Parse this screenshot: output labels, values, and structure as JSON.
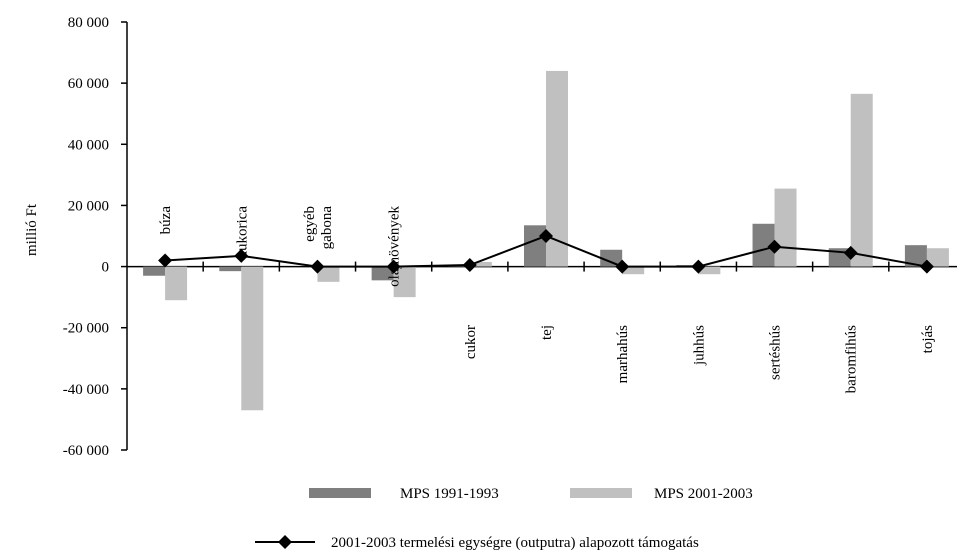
{
  "chart_data": {
    "type": "bar",
    "title": "",
    "ylabel": "millió Ft",
    "xlabel": "",
    "ylim": [
      -60000,
      80000
    ],
    "yticks": [
      80000,
      60000,
      40000,
      20000,
      0,
      -20000,
      -40000,
      -60000
    ],
    "ytick_labels": [
      "80 000",
      "60 000",
      "40 000",
      "20 000",
      "0",
      "-20 000",
      "-40 000",
      "-60 000"
    ],
    "categories": [
      {
        "lines": [
          "búza"
        ],
        "side": "above"
      },
      {
        "lines": [
          "kukorica"
        ],
        "side": "above"
      },
      {
        "lines": [
          "egyéb",
          "gabona"
        ],
        "side": "above"
      },
      {
        "lines": [
          "olajnövények"
        ],
        "side": "above"
      },
      {
        "lines": [
          "cukor"
        ],
        "side": "below"
      },
      {
        "lines": [
          "tej"
        ],
        "side": "below"
      },
      {
        "lines": [
          "marhahús"
        ],
        "side": "below"
      },
      {
        "lines": [
          "juhhús"
        ],
        "side": "below"
      },
      {
        "lines": [
          "sertéshús"
        ],
        "side": "below"
      },
      {
        "lines": [
          "baromfihús"
        ],
        "side": "below"
      },
      {
        "lines": [
          "tojás"
        ],
        "side": "below"
      }
    ],
    "series": [
      {
        "name": "MPS 1991-1993",
        "kind": "bar",
        "color": "#7f7f7f",
        "values": [
          -3000,
          -1500,
          0,
          -4500,
          500,
          13500,
          5500,
          500,
          14000,
          6000,
          7000
        ]
      },
      {
        "name": "MPS 2001-2003",
        "kind": "bar",
        "color": "#c0c0c0",
        "values": [
          -11000,
          -47000,
          -5000,
          -10000,
          1500,
          64000,
          -2500,
          -2500,
          25500,
          56500,
          6000
        ]
      },
      {
        "name": "2001-2003 termelési egységre (outputra) alapozott támogatás",
        "kind": "line",
        "color": "#000000",
        "values": [
          2000,
          3500,
          0,
          0,
          500,
          10000,
          0,
          0,
          6500,
          4500,
          0
        ]
      }
    ],
    "grid": false,
    "legend": "bottom"
  }
}
